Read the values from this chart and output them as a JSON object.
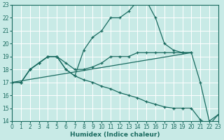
{
  "xlabel": "Humidex (Indice chaleur)",
  "bg_color": "#c8eae6",
  "grid_color": "#ffffff",
  "line_color": "#1a6b60",
  "xlim": [
    0,
    23
  ],
  "ylim": [
    14,
    23
  ],
  "yticks": [
    14,
    15,
    16,
    17,
    18,
    19,
    20,
    21,
    22,
    23
  ],
  "xticks": [
    0,
    1,
    2,
    3,
    4,
    5,
    6,
    7,
    8,
    9,
    10,
    11,
    12,
    13,
    14,
    15,
    16,
    17,
    18,
    19,
    20,
    21,
    22,
    23
  ],
  "curve1_x": [
    0,
    1,
    2,
    3,
    4,
    5,
    6,
    7,
    8,
    9,
    10,
    11,
    12,
    13,
    14,
    15,
    16,
    17,
    18,
    19,
    20
  ],
  "curve1_y": [
    17,
    17,
    18,
    18.5,
    19,
    19,
    18,
    17.5,
    19.5,
    20.5,
    21,
    22,
    22,
    22.5,
    23.3,
    23.3,
    22,
    20,
    19.5,
    19.3,
    19.3
  ],
  "curve2_x": [
    0,
    1,
    2,
    3,
    4,
    5,
    6,
    7,
    8,
    9,
    10,
    11,
    12,
    13,
    14,
    15,
    16,
    17,
    18,
    19,
    20,
    21,
    22,
    23
  ],
  "curve2_y": [
    17,
    17,
    18,
    18.5,
    19,
    19,
    18.5,
    18,
    18,
    18.2,
    18.5,
    19,
    19,
    19,
    19.3,
    19.3,
    19.3,
    19.3,
    19.3,
    19.3,
    19.3,
    17,
    14.0,
    14.5
  ],
  "curve3_x": [
    0,
    1,
    2,
    3,
    4,
    5,
    6,
    7,
    8,
    9,
    10,
    11,
    12,
    13,
    14,
    15,
    16,
    17,
    18,
    19,
    20,
    21,
    22,
    23
  ],
  "curve3_y": [
    17,
    17,
    18,
    18.5,
    19,
    19,
    18,
    17.5,
    17.2,
    17,
    16.7,
    16.5,
    16.2,
    16,
    15.8,
    15.5,
    15.3,
    15.1,
    15,
    15,
    15,
    14.1,
    13.7,
    14.5
  ],
  "curve4_x": [
    0,
    20
  ],
  "curve4_y": [
    17,
    19.3
  ]
}
